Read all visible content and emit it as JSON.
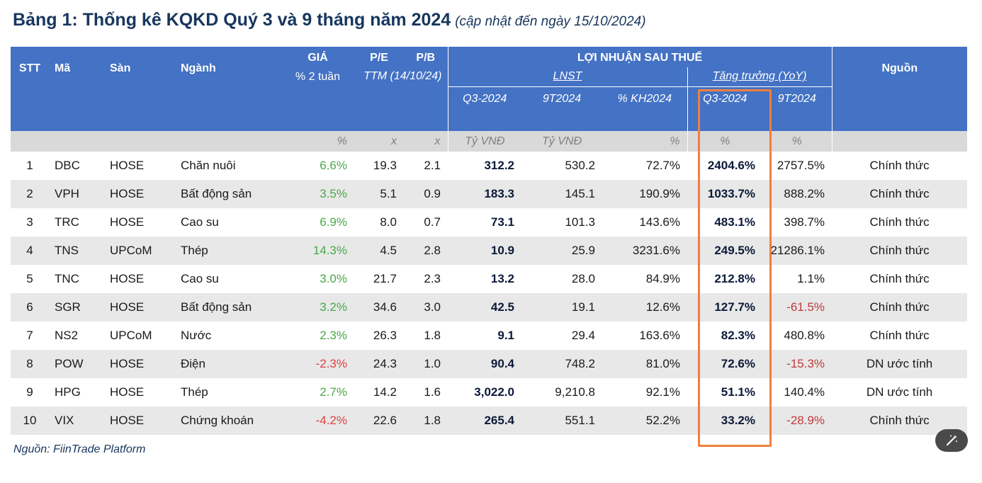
{
  "title": {
    "main": "Bảng 1: Thống kê KQKD Quý 3 và 9 tháng năm 2024",
    "sub": "(cập nhật đến ngày 15/10/2024)"
  },
  "header": {
    "stt": "STT",
    "ma": "Mã",
    "san": "Sàn",
    "nganh": "Ngành",
    "gia": "GIÁ",
    "gia_sub": "% 2 tuần",
    "pe": "P/E",
    "pb": "P/B",
    "ttm": "TTM (14/10/24)",
    "lnst_group": "LỢI NHUẬN SAU THUẾ",
    "lnst": "LNST",
    "tang_truong": "Tăng trưởng (YoY)",
    "q3_2024": "Q3-2024",
    "t9_2024": "9T2024",
    "kh2024": "% KH2024",
    "tt_q3": "Q3-2024",
    "tt_9t": "9T2024",
    "nguon": "Nguồn"
  },
  "units": {
    "gia": "%",
    "pe": "x",
    "pb": "x",
    "q3": "Tỷ VNĐ",
    "t9": "Tỷ VNĐ",
    "kh": "%",
    "tt_q3": "%",
    "tt_9t": "%"
  },
  "rows": [
    {
      "stt": "1",
      "ma": "DBC",
      "san": "HOSE",
      "nganh": "Chăn nuôi",
      "gia": "6.6%",
      "gia_sign": "pos",
      "pe": "19.3",
      "pb": "2.1",
      "q3": "312.2",
      "t9": "530.2",
      "kh": "72.7%",
      "tt_q3": "2404.6%",
      "tt_9t": "2757.5%",
      "tt_9t_sign": "pos",
      "nguon": "Chính thức"
    },
    {
      "stt": "2",
      "ma": "VPH",
      "san": "HOSE",
      "nganh": "Bất động sản",
      "gia": "3.5%",
      "gia_sign": "pos",
      "pe": "5.1",
      "pb": "0.9",
      "q3": "183.3",
      "t9": "145.1",
      "kh": "190.9%",
      "tt_q3": "1033.7%",
      "tt_9t": "888.2%",
      "tt_9t_sign": "pos",
      "nguon": "Chính thức"
    },
    {
      "stt": "3",
      "ma": "TRC",
      "san": "HOSE",
      "nganh": "Cao su",
      "gia": "6.9%",
      "gia_sign": "pos",
      "pe": "8.0",
      "pb": "0.7",
      "q3": "73.1",
      "t9": "101.3",
      "kh": "143.6%",
      "tt_q3": "483.1%",
      "tt_9t": "398.7%",
      "tt_9t_sign": "pos",
      "nguon": "Chính thức"
    },
    {
      "stt": "4",
      "ma": "TNS",
      "san": "UPCoM",
      "nganh": "Thép",
      "gia": "14.3%",
      "gia_sign": "pos",
      "pe": "4.5",
      "pb": "2.8",
      "q3": "10.9",
      "t9": "25.9",
      "kh": "3231.6%",
      "tt_q3": "249.5%",
      "tt_9t": "21286.1%",
      "tt_9t_sign": "pos",
      "nguon": "Chính thức"
    },
    {
      "stt": "5",
      "ma": "TNC",
      "san": "HOSE",
      "nganh": "Cao su",
      "gia": "3.0%",
      "gia_sign": "pos",
      "pe": "21.7",
      "pb": "2.3",
      "q3": "13.2",
      "t9": "28.0",
      "kh": "84.9%",
      "tt_q3": "212.8%",
      "tt_9t": "1.1%",
      "tt_9t_sign": "pos",
      "nguon": "Chính thức"
    },
    {
      "stt": "6",
      "ma": "SGR",
      "san": "HOSE",
      "nganh": "Bất động sản",
      "gia": "3.2%",
      "gia_sign": "pos",
      "pe": "34.6",
      "pb": "3.0",
      "q3": "42.5",
      "t9": "19.1",
      "kh": "12.6%",
      "tt_q3": "127.7%",
      "tt_9t": "-61.5%",
      "tt_9t_sign": "neg",
      "nguon": "Chính thức"
    },
    {
      "stt": "7",
      "ma": "NS2",
      "san": "UPCoM",
      "nganh": "Nước",
      "gia": "2.3%",
      "gia_sign": "pos",
      "pe": "26.3",
      "pb": "1.8",
      "q3": "9.1",
      "t9": "29.4",
      "kh": "163.6%",
      "tt_q3": "82.3%",
      "tt_9t": "480.8%",
      "tt_9t_sign": "pos",
      "nguon": "Chính thức"
    },
    {
      "stt": "8",
      "ma": "POW",
      "san": "HOSE",
      "nganh": "Điện",
      "gia": "-2.3%",
      "gia_sign": "neg",
      "pe": "24.3",
      "pb": "1.0",
      "q3": "90.4",
      "t9": "748.2",
      "kh": "81.0%",
      "tt_q3": "72.6%",
      "tt_9t": "-15.3%",
      "tt_9t_sign": "neg",
      "nguon": "DN ước tính"
    },
    {
      "stt": "9",
      "ma": "HPG",
      "san": "HOSE",
      "nganh": "Thép",
      "gia": "2.7%",
      "gia_sign": "pos",
      "pe": "14.2",
      "pb": "1.6",
      "q3": "3,022.0",
      "t9": "9,210.8",
      "kh": "92.1%",
      "tt_q3": "51.1%",
      "tt_9t": "140.4%",
      "tt_9t_sign": "pos",
      "nguon": "DN ước tính"
    },
    {
      "stt": "10",
      "ma": "VIX",
      "san": "HOSE",
      "nganh": "Chứng khoán",
      "gia": "-4.2%",
      "gia_sign": "neg",
      "pe": "22.6",
      "pb": "1.8",
      "q3": "265.4",
      "t9": "551.1",
      "kh": "52.2%",
      "tt_q3": "33.2%",
      "tt_9t": "-28.9%",
      "tt_9t_sign": "neg",
      "nguon": "Chính thức"
    }
  ],
  "source": "Nguồn: FiinTrade Platform",
  "colors": {
    "header_bg": "#4472c4",
    "units_bg": "#d9d9d9",
    "highlight": "#f0803c",
    "positive": "#4aa84a",
    "negative": "#e04040"
  },
  "icons": {
    "edit": "magic-wand-icon"
  }
}
